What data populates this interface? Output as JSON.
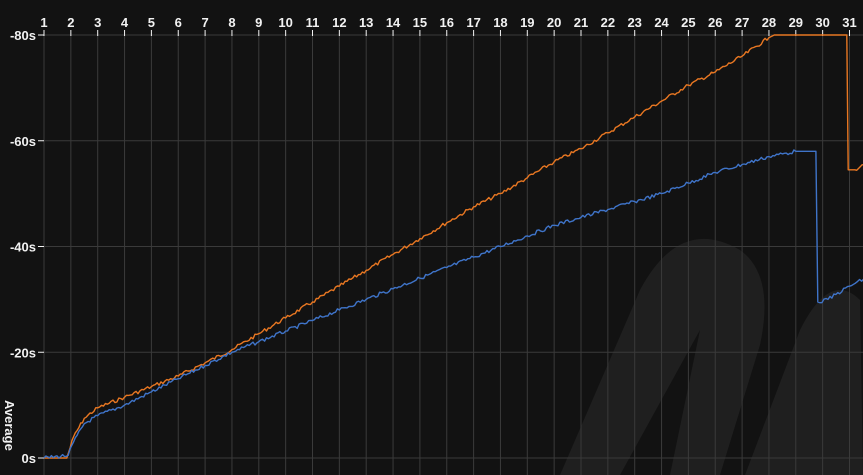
{
  "chart_data": {
    "type": "line",
    "xlabel": "",
    "ylabel": "Average",
    "x_ticks": [
      1,
      2,
      3,
      4,
      5,
      6,
      7,
      8,
      9,
      10,
      11,
      12,
      13,
      14,
      15,
      16,
      17,
      18,
      19,
      20,
      21,
      22,
      23,
      24,
      25,
      26,
      27,
      28,
      29,
      30,
      31
    ],
    "y_ticks": [
      0,
      -20,
      -40,
      -60,
      -80
    ],
    "y_tick_labels": [
      "0s",
      "-20s",
      "-40s",
      "-60s",
      "-80s"
    ],
    "xlim": [
      1,
      31.6
    ],
    "ylim": [
      0,
      -80
    ],
    "y_reversed": true,
    "grid": {
      "vertical": true,
      "horizontal": true
    },
    "colors": {
      "orange": "#e87722",
      "blue": "#3f74c9",
      "grid": "#3a3a3a",
      "background": "#121212",
      "watermark": "#1f1f1f"
    },
    "series": [
      {
        "color": "orange",
        "points": [
          [
            1,
            0
          ],
          [
            1.85,
            0
          ],
          [
            2.1,
            -4
          ],
          [
            2.5,
            -7.5
          ],
          [
            3,
            -9.5
          ],
          [
            4,
            -11.5
          ],
          [
            5,
            -13.5
          ],
          [
            6,
            -15.5
          ],
          [
            7,
            -18
          ],
          [
            8,
            -20.5
          ],
          [
            9,
            -23.5
          ],
          [
            10,
            -26.5
          ],
          [
            11,
            -29.5
          ],
          [
            12,
            -32.5
          ],
          [
            13,
            -35.5
          ],
          [
            14,
            -38.5
          ],
          [
            15,
            -41.5
          ],
          [
            16,
            -44.5
          ],
          [
            17,
            -47.5
          ],
          [
            18,
            -50
          ],
          [
            19,
            -53
          ],
          [
            20,
            -56
          ],
          [
            21,
            -58.5
          ],
          [
            22,
            -61.5
          ],
          [
            23,
            -64.5
          ],
          [
            24,
            -67.5
          ],
          [
            25,
            -70.5
          ],
          [
            26,
            -73
          ],
          [
            27,
            -76
          ],
          [
            28,
            -79.5
          ],
          [
            28.2,
            -80
          ],
          [
            30.9,
            -80
          ],
          [
            30.95,
            -54.5
          ],
          [
            31.2,
            -54.5
          ],
          [
            31.6,
            -56
          ]
        ]
      },
      {
        "color": "blue",
        "points": [
          [
            1,
            0
          ],
          [
            1.9,
            -0.5
          ],
          [
            2.1,
            -3
          ],
          [
            2.5,
            -6.5
          ],
          [
            3,
            -8
          ],
          [
            4,
            -10
          ],
          [
            5,
            -12.5
          ],
          [
            6,
            -15
          ],
          [
            7,
            -17.5
          ],
          [
            8,
            -20
          ],
          [
            9,
            -22
          ],
          [
            10,
            -24
          ],
          [
            11,
            -26
          ],
          [
            12,
            -28
          ],
          [
            13,
            -30
          ],
          [
            14,
            -32
          ],
          [
            15,
            -34
          ],
          [
            16,
            -36
          ],
          [
            17,
            -38
          ],
          [
            18,
            -40
          ],
          [
            19,
            -42
          ],
          [
            20,
            -44
          ],
          [
            21,
            -45.5
          ],
          [
            22,
            -47
          ],
          [
            23,
            -48.5
          ],
          [
            24,
            -50
          ],
          [
            25,
            -52
          ],
          [
            26,
            -54
          ],
          [
            27,
            -55.5
          ],
          [
            28,
            -57
          ],
          [
            29,
            -58
          ],
          [
            29.75,
            -58
          ],
          [
            29.82,
            -29.5
          ],
          [
            30.2,
            -30
          ],
          [
            31,
            -32.5
          ],
          [
            31.6,
            -34
          ]
        ]
      }
    ]
  }
}
